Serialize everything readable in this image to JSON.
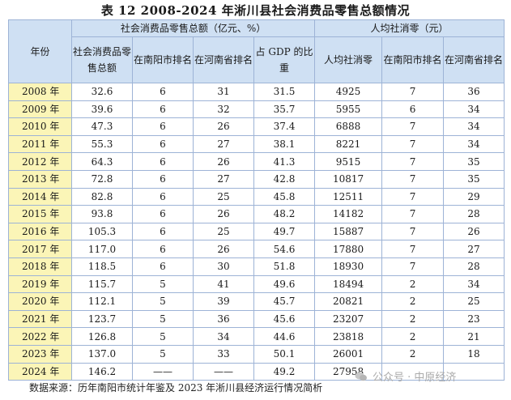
{
  "title": "表 12 2008-2024 年淅川县社会消费品零售总额情况",
  "headers": {
    "year": "年份",
    "group1": "社会消费品零售总额（亿元、%）",
    "group2": "人均社消零（元）",
    "c1": "社会消费品零售总额",
    "c2": "在南阳市排名",
    "c3": "在河南省排名",
    "c4": "占 GDP 的比重",
    "c5": "人均社消零",
    "c6": "在南阳市排名",
    "c7": "在河南省排名"
  },
  "rows": [
    [
      "2008 年",
      "32.6",
      "6",
      "31",
      "31.5",
      "4925",
      "7",
      "36"
    ],
    [
      "2009 年",
      "39.6",
      "6",
      "32",
      "35.7",
      "5955",
      "6",
      "34"
    ],
    [
      "2010 年",
      "47.3",
      "6",
      "26",
      "37.4",
      "6888",
      "7",
      "34"
    ],
    [
      "2011 年",
      "55.3",
      "6",
      "27",
      "38.1",
      "8221",
      "7",
      "34"
    ],
    [
      "2012 年",
      "64.3",
      "6",
      "26",
      "41.3",
      "9515",
      "7",
      "35"
    ],
    [
      "2013 年",
      "72.8",
      "6",
      "27",
      "42.8",
      "10817",
      "7",
      "35"
    ],
    [
      "2014 年",
      "82.8",
      "6",
      "25",
      "45.8",
      "12511",
      "7",
      "29"
    ],
    [
      "2015 年",
      "93.8",
      "6",
      "26",
      "48.2",
      "14182",
      "7",
      "28"
    ],
    [
      "2016 年",
      "105.3",
      "6",
      "25",
      "49.7",
      "15887",
      "7",
      "26"
    ],
    [
      "2017 年",
      "117.0",
      "6",
      "26",
      "54.6",
      "17880",
      "7",
      "27"
    ],
    [
      "2018 年",
      "118.5",
      "6",
      "30",
      "51.8",
      "18930",
      "7",
      "28"
    ],
    [
      "2019 年",
      "115.7",
      "5",
      "41",
      "49.6",
      "18494",
      "2",
      "34"
    ],
    [
      "2020 年",
      "112.1",
      "5",
      "39",
      "45.7",
      "20821",
      "2",
      "25"
    ],
    [
      "2021 年",
      "123.7",
      "5",
      "36",
      "45.6",
      "23207",
      "2",
      "23"
    ],
    [
      "2022 年",
      "126.8",
      "5",
      "34",
      "44.6",
      "23818",
      "2",
      "21"
    ],
    [
      "2023 年",
      "137.0",
      "5",
      "33",
      "50.1",
      "26001",
      "2",
      "18"
    ],
    [
      "2024 年",
      "146.2",
      "——",
      "——",
      "49.2",
      "27958",
      "",
      ""
    ]
  ],
  "footer": "数据来源：历年南阳市统计年鉴及 2023 年淅川县经济运行情况简析",
  "watermark": "公众号 · 中原经济",
  "colors": {
    "header_bg": "#cfe0f3",
    "year_bg": "#fbf5b7",
    "border": "#9db3d6"
  }
}
